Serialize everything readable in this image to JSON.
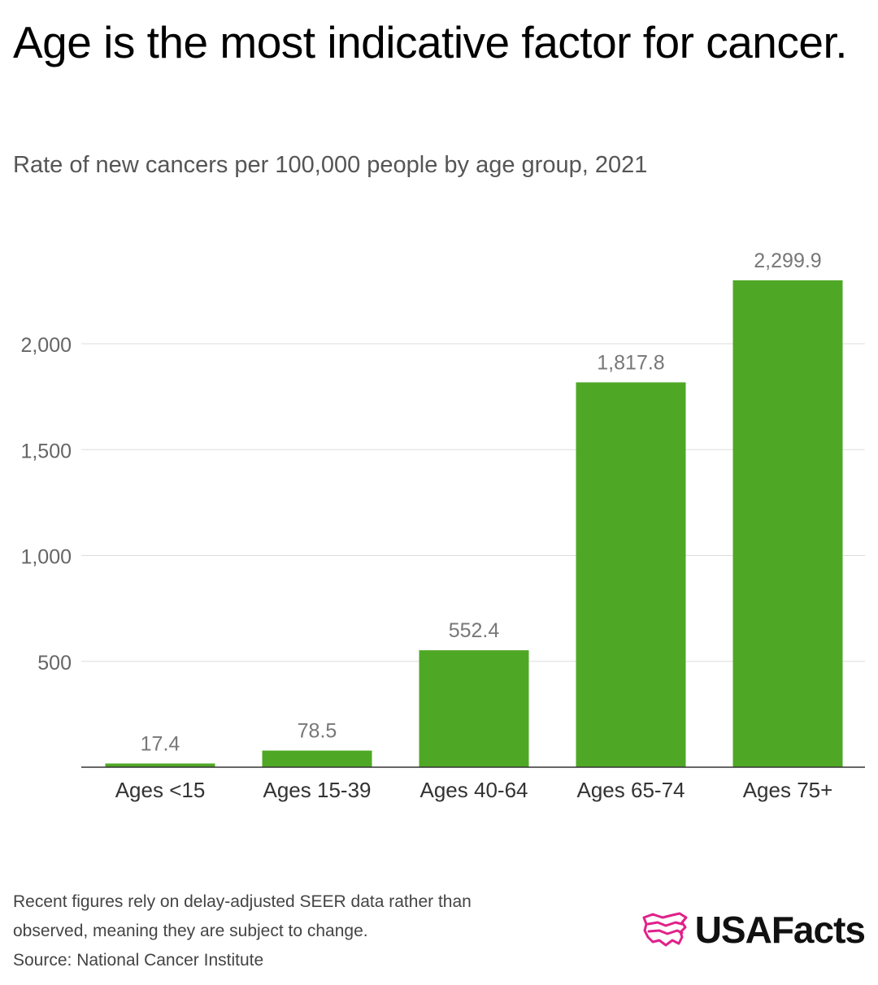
{
  "title": "Age is the most indicative factor for cancer.",
  "subtitle": "Rate of new cancers per 100,000 people by age group, 2021",
  "chart_data": {
    "type": "bar",
    "categories": [
      "Ages <15",
      "Ages 15-39",
      "Ages 40-64",
      "Ages 65-74",
      "Ages 75+"
    ],
    "values": [
      17.4,
      78.5,
      552.4,
      1817.8,
      2299.9
    ],
    "value_labels": [
      "17.4",
      "78.5",
      "552.4",
      "1,817.8",
      "2,299.9"
    ],
    "y_ticks": [
      500,
      1000,
      1500,
      2000
    ],
    "y_tick_labels": [
      "500",
      "1,000",
      "1,500",
      "2,000"
    ],
    "ylim": [
      0,
      2300
    ],
    "grid": true,
    "bar_color": "#4fa825"
  },
  "footnote": {
    "line1": "Recent figures rely on delay-adjusted SEER data rather than",
    "line2": "observed, meaning they are subject to change.",
    "source": "Source: National Cancer Institute"
  },
  "brand": {
    "name": "USAFacts",
    "logo_icon": "usa-map-icon",
    "logo_color": "#e0218a"
  }
}
